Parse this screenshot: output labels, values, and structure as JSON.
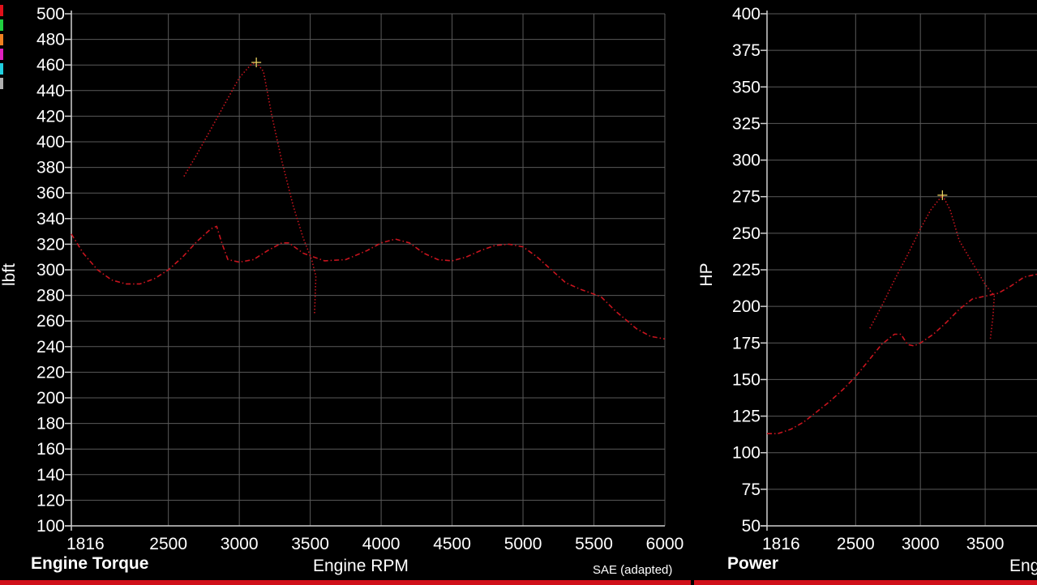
{
  "legend": {
    "swatch_colors": [
      "#e0101a",
      "#20d040",
      "#f08020",
      "#e020c0",
      "#20d0e0",
      "#b0b0b0"
    ]
  },
  "footer": {
    "note": "SAE (adapted)"
  },
  "chart_data": [
    {
      "type": "line",
      "title": "Engine Torque",
      "xlabel": "Engine RPM",
      "ylabel": "lbft",
      "xlim": [
        1816,
        6000
      ],
      "ylim": [
        100,
        500
      ],
      "xticks": [
        1816,
        2500,
        3000,
        3500,
        4000,
        4500,
        5000,
        5500,
        6000
      ],
      "yticks": [
        100,
        120,
        140,
        160,
        180,
        200,
        220,
        240,
        260,
        280,
        300,
        320,
        340,
        360,
        380,
        400,
        420,
        440,
        460,
        480,
        500
      ],
      "grid": true,
      "peak_marker": {
        "x": 3120,
        "y": 462
      },
      "series": [
        {
          "color": "#c8141e",
          "style": "dotted",
          "points": [
            [
              2610,
              373
            ],
            [
              2700,
              390
            ],
            [
              2800,
              410
            ],
            [
              2900,
              430
            ],
            [
              3000,
              450
            ],
            [
              3080,
              460
            ],
            [
              3120,
              462
            ],
            [
              3170,
              455
            ],
            [
              3230,
              420
            ],
            [
              3300,
              385
            ],
            [
              3380,
              350
            ],
            [
              3450,
              325
            ],
            [
              3510,
              308
            ],
            [
              3540,
              295
            ],
            [
              3530,
              265
            ]
          ]
        },
        {
          "color": "#c8141e",
          "style": "dashdot",
          "points": [
            [
              1816,
              328
            ],
            [
              1900,
              313
            ],
            [
              2000,
              300
            ],
            [
              2100,
              292
            ],
            [
              2200,
              289
            ],
            [
              2300,
              289
            ],
            [
              2400,
              293
            ],
            [
              2500,
              300
            ],
            [
              2600,
              310
            ],
            [
              2700,
              322
            ],
            [
              2800,
              332
            ],
            [
              2840,
              334
            ],
            [
              2880,
              320
            ],
            [
              2920,
              308
            ],
            [
              3000,
              306
            ],
            [
              3100,
              308
            ],
            [
              3200,
              315
            ],
            [
              3300,
              321
            ],
            [
              3350,
              321
            ],
            [
              3450,
              313
            ],
            [
              3600,
              307
            ],
            [
              3750,
              308
            ],
            [
              3900,
              315
            ],
            [
              4000,
              321
            ],
            [
              4100,
              324
            ],
            [
              4200,
              321
            ],
            [
              4300,
              313
            ],
            [
              4400,
              308
            ],
            [
              4500,
              307
            ],
            [
              4600,
              310
            ],
            [
              4700,
              315
            ],
            [
              4800,
              319
            ],
            [
              4900,
              320
            ],
            [
              5000,
              318
            ],
            [
              5100,
              310
            ],
            [
              5200,
              300
            ],
            [
              5300,
              290
            ],
            [
              5400,
              285
            ],
            [
              5550,
              279
            ],
            [
              5650,
              268
            ],
            [
              5800,
              254
            ],
            [
              5900,
              248
            ],
            [
              6000,
              246
            ]
          ]
        }
      ]
    },
    {
      "type": "line",
      "title": "Power",
      "xlabel": "Engine RPM",
      "ylabel": "HP",
      "xlim": [
        1816,
        3900
      ],
      "ylim": [
        50,
        400
      ],
      "xticks": [
        1816,
        2500,
        3000,
        3500
      ],
      "yticks": [
        50,
        75,
        100,
        125,
        150,
        175,
        200,
        225,
        250,
        275,
        300,
        325,
        350,
        375,
        400
      ],
      "grid": true,
      "peak_marker": {
        "x": 3170,
        "y": 276
      },
      "series": [
        {
          "color": "#c8141e",
          "style": "dotted",
          "points": [
            [
              2610,
              185
            ],
            [
              2700,
              200
            ],
            [
              2800,
              218
            ],
            [
              2900,
              235
            ],
            [
              3000,
              253
            ],
            [
              3080,
              266
            ],
            [
              3170,
              276
            ],
            [
              3230,
              266
            ],
            [
              3300,
              245
            ],
            [
              3400,
              230
            ],
            [
              3500,
              215
            ],
            [
              3570,
              207
            ],
            [
              3560,
              193
            ],
            [
              3540,
              178
            ]
          ]
        },
        {
          "color": "#c8141e",
          "style": "dashdot",
          "points": [
            [
              1816,
              113
            ],
            [
              1900,
              113
            ],
            [
              2000,
              116
            ],
            [
              2100,
              121
            ],
            [
              2200,
              128
            ],
            [
              2300,
              135
            ],
            [
              2400,
              143
            ],
            [
              2500,
              152
            ],
            [
              2600,
              163
            ],
            [
              2700,
              174
            ],
            [
              2800,
              181
            ],
            [
              2850,
              181
            ],
            [
              2900,
              174
            ],
            [
              2950,
              173
            ],
            [
              3000,
              175
            ],
            [
              3100,
              181
            ],
            [
              3200,
              189
            ],
            [
              3300,
              198
            ],
            [
              3400,
              205
            ],
            [
              3500,
              207
            ],
            [
              3600,
              209
            ],
            [
              3700,
              214
            ],
            [
              3800,
              220
            ],
            [
              3900,
              222
            ]
          ]
        }
      ]
    }
  ]
}
